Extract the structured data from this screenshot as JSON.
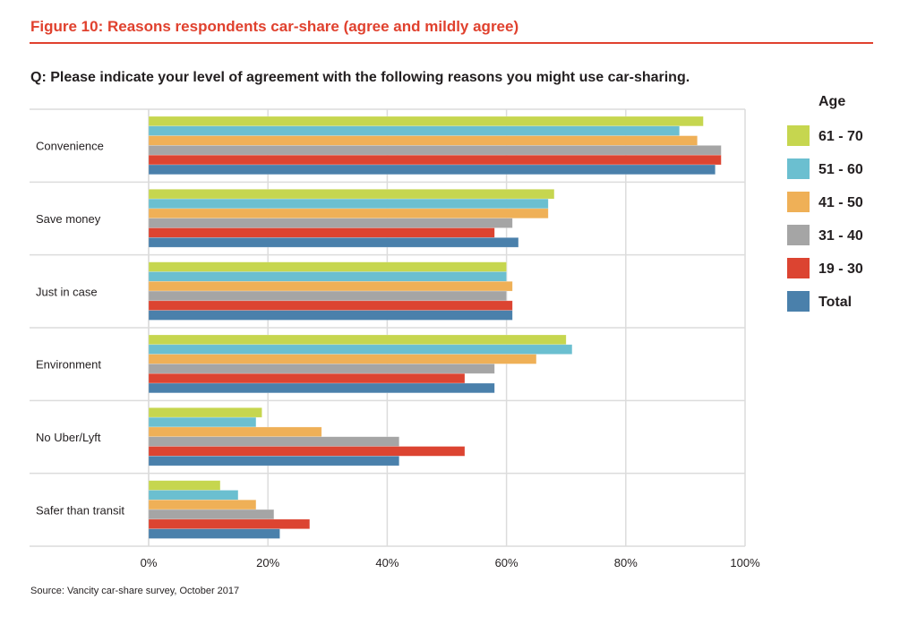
{
  "header": {
    "figure_title": "Figure 10: Reasons respondents car-share (agree and mildly agree)",
    "question": "Q: Please indicate your level of agreement with the following reasons you might use car-sharing."
  },
  "footer": {
    "source": "Source: Vancity car-share survey, October 2017"
  },
  "colors": {
    "accent": "#e0412e"
  },
  "chart_data": {
    "type": "bar",
    "orientation": "horizontal",
    "title": "Figure 10: Reasons respondents car-share (agree and mildly agree)",
    "subtitle": "Q: Please indicate your level of agreement with the following reasons you might use car-sharing.",
    "xlabel": "",
    "ylabel": "",
    "xlim": [
      0,
      100
    ],
    "x_ticks": [
      "0%",
      "20%",
      "40%",
      "60%",
      "80%",
      "100%"
    ],
    "grid": true,
    "legend_title": "Age",
    "legend_position": "right",
    "categories": [
      "Convenience",
      "Save money",
      "Just in case",
      "Environment",
      "No Uber/Lyft",
      "Safer than transit"
    ],
    "series": [
      {
        "name": "61 - 70",
        "color": "#c6d64f",
        "values": [
          93,
          68,
          60,
          70,
          19,
          12
        ]
      },
      {
        "name": "51 - 60",
        "color": "#6bbfd0",
        "values": [
          89,
          67,
          60,
          71,
          18,
          15
        ]
      },
      {
        "name": "41 - 50",
        "color": "#efb057",
        "values": [
          92,
          67,
          61,
          65,
          29,
          18
        ]
      },
      {
        "name": "31 - 40",
        "color": "#a5a5a5",
        "values": [
          96,
          61,
          60,
          58,
          42,
          21
        ]
      },
      {
        "name": "19 - 30",
        "color": "#dc4431",
        "values": [
          96,
          58,
          61,
          53,
          53,
          27
        ]
      },
      {
        "name": "Total",
        "color": "#4a80ab",
        "values": [
          95,
          62,
          61,
          58,
          42,
          22
        ]
      }
    ]
  }
}
